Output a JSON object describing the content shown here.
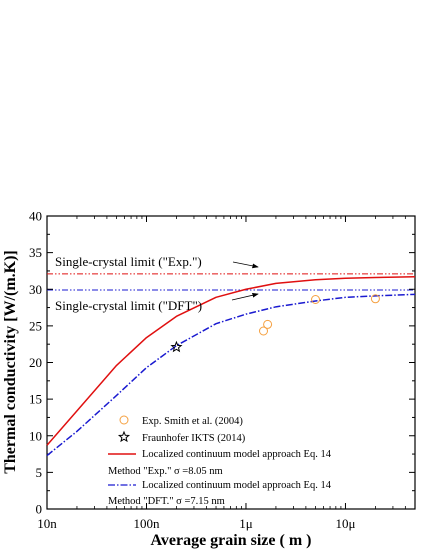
{
  "chart_data": {
    "type": "line",
    "xlabel": "Average grain size ( m )",
    "ylabel": "Thermal conductivity [W/(m.K)]",
    "xscale": "log",
    "xlim": [
      1e-08,
      5e-05
    ],
    "ylim": [
      0,
      40
    ],
    "x_tick_values": [
      1e-08,
      1e-07,
      1e-06,
      1e-05
    ],
    "x_tick_labels": [
      "10n",
      "100n",
      "1μ",
      "10μ"
    ],
    "y_ticks": [
      0,
      5,
      10,
      15,
      20,
      25,
      30,
      35,
      40
    ],
    "grid": false,
    "legend_position": "bottom-right",
    "series": [
      {
        "name": "Exp. Smith et al. (2004)",
        "kind": "scatter",
        "marker": "circle",
        "color": "#f5a040",
        "x": [
          1.5e-06,
          1.65e-06,
          5e-06,
          2e-05
        ],
        "y": [
          24.3,
          25.2,
          28.6,
          28.7
        ]
      },
      {
        "name": "Fraunhofer IKTS (2014)",
        "kind": "scatter",
        "marker": "star",
        "color": "#000000",
        "x": [
          2e-07
        ],
        "y": [
          22.1
        ]
      },
      {
        "name": "Localized continuum model approach Eq. 14",
        "name_line2": "Method \"Exp.\"  σ =8.05 nm",
        "kind": "line",
        "color": "#e01010",
        "dash": "solid",
        "x": [
          1e-08,
          2e-08,
          5e-08,
          1e-07,
          2e-07,
          5e-07,
          1e-06,
          2e-06,
          5e-06,
          1e-05,
          2e-05,
          5e-05
        ],
        "y": [
          8.7,
          13.4,
          19.6,
          23.4,
          26.3,
          28.9,
          30.0,
          30.8,
          31.3,
          31.5,
          31.6,
          31.7
        ]
      },
      {
        "name": "Localized continuum model approach Eq. 14",
        "name_line2": "Method \"DFT.\"  σ =7.15 nm",
        "kind": "line",
        "color": "#1a1ad0",
        "dash": "dashdot",
        "x": [
          1e-08,
          2e-08,
          5e-08,
          1e-07,
          2e-07,
          5e-07,
          1e-06,
          2e-06,
          5e-06,
          1e-05,
          2e-05,
          5e-05
        ],
        "y": [
          7.3,
          10.6,
          15.5,
          19.3,
          22.3,
          25.3,
          26.6,
          27.6,
          28.4,
          28.9,
          29.1,
          29.3
        ]
      }
    ],
    "reference_lines": [
      {
        "y": 32.1,
        "label": "Single-crystal limit (\"Exp.\")",
        "color": "#e01010",
        "dash": "dashdotdot"
      },
      {
        "y": 29.9,
        "label": "Single-crystal limit (\"DFT\")",
        "color": "#1a1ad0",
        "dash": "dashdotdot"
      }
    ]
  }
}
